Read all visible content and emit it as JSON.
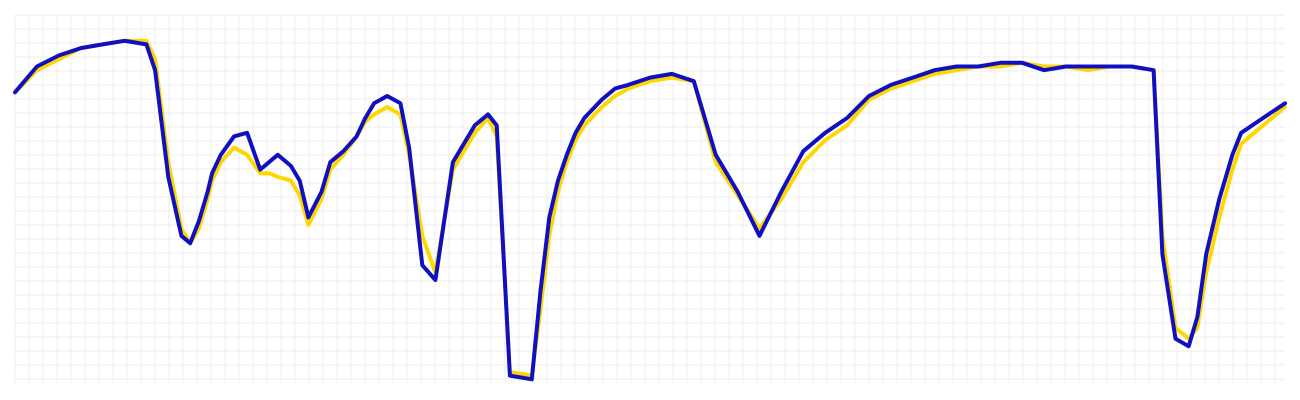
{
  "chart_data": {
    "type": "line",
    "title": "",
    "xlabel": "",
    "ylabel": "",
    "grid": true,
    "legend": "none",
    "xlim": [
      0,
      290
    ],
    "ylim": [
      0,
      100
    ],
    "series": [
      {
        "color": "#FFD700",
        "width": 4,
        "x": [
          0,
          5,
          10,
          15,
          20,
          25,
          30,
          32,
          35,
          38,
          40,
          42,
          44,
          45,
          47,
          50,
          53,
          56,
          58,
          60,
          63,
          65,
          67,
          70,
          72,
          75,
          78,
          80,
          82,
          85,
          88,
          90,
          93,
          96,
          100,
          105,
          108,
          110,
          113,
          118,
          120,
          122,
          124,
          126,
          128,
          130,
          134,
          137,
          140,
          145,
          150,
          155,
          160,
          165,
          170,
          175,
          180,
          185,
          190,
          195,
          200,
          205,
          210,
          215,
          220,
          225,
          230,
          235,
          240,
          245,
          250,
          255,
          260,
          262,
          265,
          268,
          270,
          272,
          275,
          278,
          280,
          285,
          290
        ],
        "values": [
          79,
          85,
          88,
          91,
          92,
          93,
          93,
          88,
          60,
          42,
          38,
          42,
          50,
          55,
          60,
          64,
          62,
          57,
          57,
          56,
          55,
          51,
          43,
          50,
          58,
          62,
          67,
          71,
          73,
          75,
          73,
          62,
          40,
          30,
          58,
          68,
          72,
          67,
          3,
          2,
          20,
          40,
          52,
          60,
          66,
          70,
          75,
          78,
          80,
          82,
          83,
          82,
          60,
          51,
          42,
          50,
          60,
          66,
          70,
          77,
          80,
          82,
          84,
          85,
          86,
          86,
          87,
          86,
          86,
          85,
          86,
          86,
          85,
          40,
          15,
          12,
          15,
          30,
          45,
          58,
          65,
          70,
          75
        ]
      },
      {
        "color": "#1010C0",
        "width": 4,
        "x": [
          0,
          5,
          10,
          15,
          20,
          25,
          30,
          32,
          35,
          38,
          40,
          42,
          44,
          45,
          47,
          50,
          53,
          56,
          58,
          60,
          63,
          65,
          67,
          70,
          72,
          75,
          78,
          80,
          82,
          85,
          88,
          90,
          93,
          96,
          100,
          105,
          108,
          110,
          113,
          118,
          120,
          122,
          124,
          126,
          128,
          130,
          134,
          137,
          140,
          145,
          150,
          155,
          160,
          165,
          170,
          175,
          180,
          185,
          190,
          195,
          200,
          205,
          210,
          215,
          220,
          225,
          230,
          235,
          240,
          245,
          250,
          255,
          260,
          262,
          265,
          268,
          270,
          272,
          275,
          278,
          280,
          285,
          290
        ],
        "values": [
          79,
          86,
          89,
          91,
          92,
          93,
          92,
          85,
          56,
          40,
          38,
          44,
          52,
          57,
          62,
          67,
          68,
          58,
          60,
          62,
          59,
          55,
          45,
          52,
          60,
          63,
          67,
          72,
          76,
          78,
          76,
          64,
          32,
          28,
          60,
          70,
          73,
          70,
          2,
          1,
          25,
          45,
          55,
          62,
          68,
          72,
          77,
          80,
          81,
          83,
          84,
          82,
          62,
          52,
          40,
          52,
          63,
          68,
          72,
          78,
          81,
          83,
          85,
          86,
          86,
          87,
          87,
          85,
          86,
          86,
          86,
          86,
          85,
          35,
          12,
          10,
          18,
          35,
          50,
          62,
          68,
          72,
          76
        ]
      }
    ]
  }
}
